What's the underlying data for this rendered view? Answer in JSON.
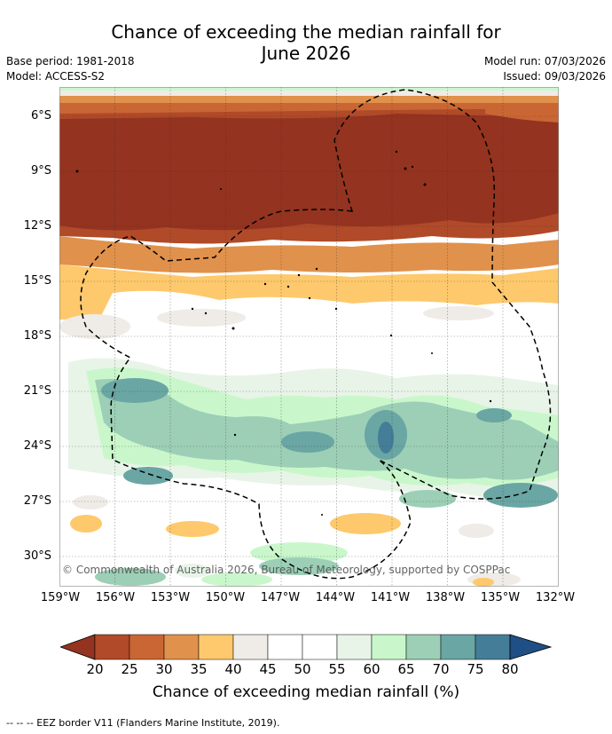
{
  "title_line1": "Chance of exceeding the median rainfall for",
  "title_line2": "June 2026",
  "base_period": "Base period: 1981-2018",
  "model": "Model: ACCESS-S2",
  "model_run": "Model run: 07/03/2026",
  "issued": "Issued: 09/03/2026",
  "copyright": "© Commonwealth of Australia 2026, Bureau of Meteorology, supported by COSPPac",
  "lat_labels": [
    "6°S",
    "9°S",
    "12°S",
    "15°S",
    "18°S",
    "21°S",
    "24°S",
    "27°S",
    "30°S"
  ],
  "lon_labels": [
    "159°W",
    "156°W",
    "153°W",
    "150°W",
    "147°W",
    "144°W",
    "141°W",
    "138°W",
    "135°W",
    "132°W"
  ],
  "colorbar": {
    "ticks": [
      "20",
      "25",
      "30",
      "35",
      "40",
      "45",
      "50",
      "55",
      "60",
      "65",
      "70",
      "75",
      "80"
    ],
    "colors": [
      "#94331f",
      "#b04a28",
      "#ca6634",
      "#e0914b",
      "#fdc96c",
      "#efebe7",
      "#ffffff",
      "#ffffff",
      "#e8f4e8",
      "#c9f7cb",
      "#9ccfb6",
      "#6aa6a3",
      "#447d98",
      "#1f4f84"
    ],
    "label": "Chance of exceeding median rainfall (%)"
  },
  "legend_note": "--  --  -- EEZ border V11 (Flanders Marine Institute, 2019)."
}
